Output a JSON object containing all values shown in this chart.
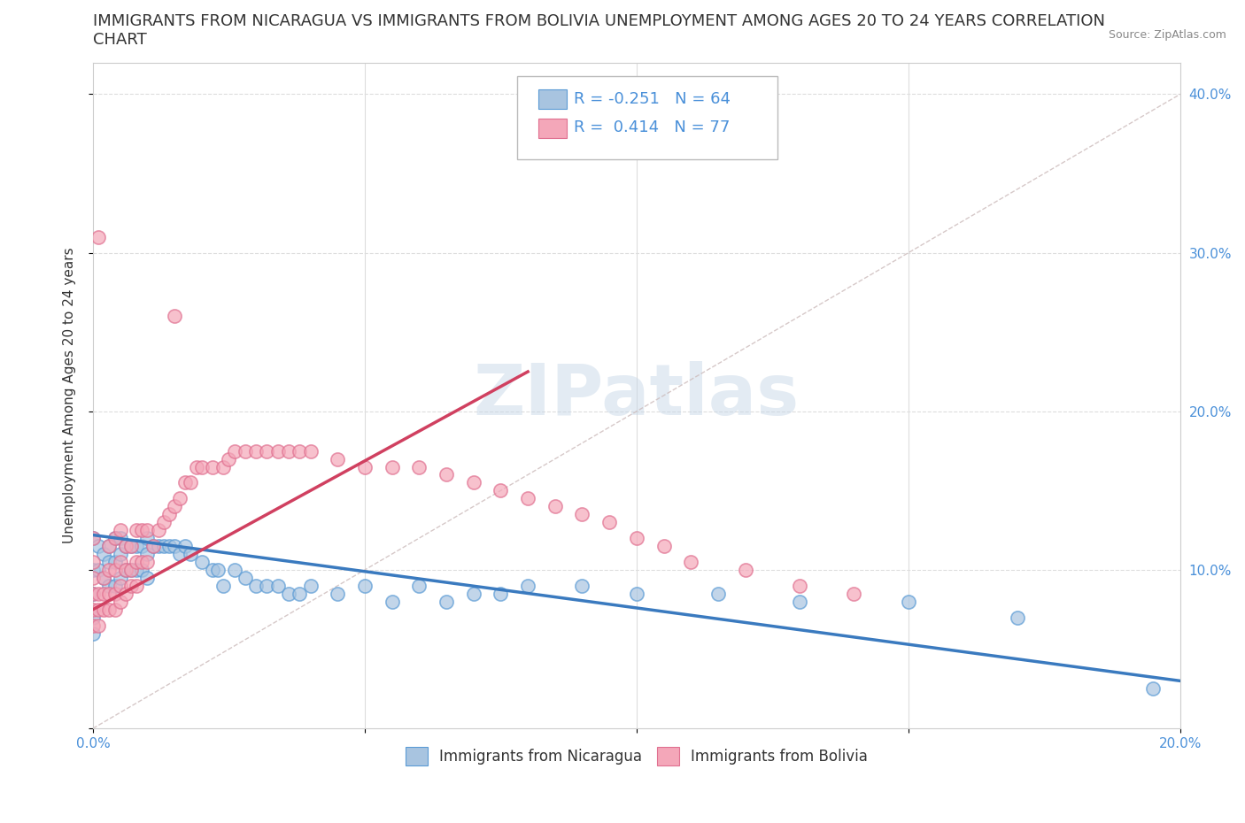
{
  "title": "IMMIGRANTS FROM NICARAGUA VS IMMIGRANTS FROM BOLIVIA UNEMPLOYMENT AMONG AGES 20 TO 24 YEARS CORRELATION\nCHART",
  "source": "Source: ZipAtlas.com",
  "ylabel_text": "Unemployment Among Ages 20 to 24 years",
  "xlim": [
    0.0,
    0.2
  ],
  "ylim": [
    0.0,
    0.42
  ],
  "xticks": [
    0.0,
    0.05,
    0.1,
    0.15,
    0.2
  ],
  "yticks": [
    0.0,
    0.1,
    0.2,
    0.3,
    0.4
  ],
  "nicaragua_color": "#a8c4e0",
  "bolivia_color": "#f4a7b9",
  "nicaragua_edge_color": "#5b9bd5",
  "bolivia_edge_color": "#e07090",
  "nicaragua_line_color": "#3a7abf",
  "bolivia_line_color": "#d04060",
  "R_nicaragua": -0.251,
  "N_nicaragua": 64,
  "R_bolivia": 0.414,
  "N_bolivia": 77,
  "legend_label_nicaragua": "Immigrants from Nicaragua",
  "legend_label_bolivia": "Immigrants from Bolivia",
  "watermark": "ZIPatlas",
  "background_color": "#ffffff",
  "title_fontsize": 13,
  "axis_label_fontsize": 11,
  "tick_fontsize": 11,
  "stat_text_color": "#4a90d9",
  "nicaragua_scatter_x": [
    0.0,
    0.0,
    0.0,
    0.0,
    0.0,
    0.001,
    0.001,
    0.002,
    0.002,
    0.003,
    0.003,
    0.003,
    0.004,
    0.004,
    0.004,
    0.005,
    0.005,
    0.005,
    0.006,
    0.006,
    0.007,
    0.007,
    0.008,
    0.008,
    0.009,
    0.009,
    0.01,
    0.01,
    0.01,
    0.011,
    0.012,
    0.013,
    0.014,
    0.015,
    0.016,
    0.017,
    0.018,
    0.02,
    0.022,
    0.023,
    0.024,
    0.026,
    0.028,
    0.03,
    0.032,
    0.034,
    0.036,
    0.038,
    0.04,
    0.045,
    0.05,
    0.055,
    0.06,
    0.065,
    0.07,
    0.075,
    0.08,
    0.09,
    0.1,
    0.115,
    0.13,
    0.15,
    0.17,
    0.195
  ],
  "nicaragua_scatter_y": [
    0.12,
    0.1,
    0.085,
    0.07,
    0.06,
    0.115,
    0.1,
    0.11,
    0.095,
    0.115,
    0.105,
    0.09,
    0.12,
    0.105,
    0.09,
    0.12,
    0.11,
    0.095,
    0.115,
    0.1,
    0.115,
    0.1,
    0.115,
    0.1,
    0.115,
    0.1,
    0.12,
    0.11,
    0.095,
    0.115,
    0.115,
    0.115,
    0.115,
    0.115,
    0.11,
    0.115,
    0.11,
    0.105,
    0.1,
    0.1,
    0.09,
    0.1,
    0.095,
    0.09,
    0.09,
    0.09,
    0.085,
    0.085,
    0.09,
    0.085,
    0.09,
    0.08,
    0.09,
    0.08,
    0.085,
    0.085,
    0.09,
    0.09,
    0.085,
    0.085,
    0.08,
    0.08,
    0.07,
    0.025
  ],
  "bolivia_scatter_x": [
    0.0,
    0.0,
    0.0,
    0.0,
    0.0,
    0.0,
    0.001,
    0.001,
    0.001,
    0.002,
    0.002,
    0.002,
    0.003,
    0.003,
    0.003,
    0.003,
    0.004,
    0.004,
    0.004,
    0.004,
    0.005,
    0.005,
    0.005,
    0.005,
    0.006,
    0.006,
    0.006,
    0.007,
    0.007,
    0.007,
    0.008,
    0.008,
    0.008,
    0.009,
    0.009,
    0.01,
    0.01,
    0.011,
    0.012,
    0.013,
    0.014,
    0.015,
    0.016,
    0.017,
    0.018,
    0.019,
    0.02,
    0.022,
    0.024,
    0.025,
    0.026,
    0.028,
    0.03,
    0.032,
    0.034,
    0.036,
    0.038,
    0.04,
    0.045,
    0.05,
    0.055,
    0.06,
    0.065,
    0.07,
    0.075,
    0.08,
    0.085,
    0.09,
    0.095,
    0.1,
    0.105,
    0.11,
    0.12,
    0.13,
    0.14,
    0.015,
    0.001
  ],
  "bolivia_scatter_y": [
    0.065,
    0.075,
    0.085,
    0.095,
    0.105,
    0.12,
    0.065,
    0.075,
    0.085,
    0.075,
    0.085,
    0.095,
    0.075,
    0.085,
    0.1,
    0.115,
    0.075,
    0.085,
    0.1,
    0.12,
    0.08,
    0.09,
    0.105,
    0.125,
    0.085,
    0.1,
    0.115,
    0.09,
    0.1,
    0.115,
    0.09,
    0.105,
    0.125,
    0.105,
    0.125,
    0.105,
    0.125,
    0.115,
    0.125,
    0.13,
    0.135,
    0.14,
    0.145,
    0.155,
    0.155,
    0.165,
    0.165,
    0.165,
    0.165,
    0.17,
    0.175,
    0.175,
    0.175,
    0.175,
    0.175,
    0.175,
    0.175,
    0.175,
    0.17,
    0.165,
    0.165,
    0.165,
    0.16,
    0.155,
    0.15,
    0.145,
    0.14,
    0.135,
    0.13,
    0.12,
    0.115,
    0.105,
    0.1,
    0.09,
    0.085,
    0.26,
    0.31
  ]
}
